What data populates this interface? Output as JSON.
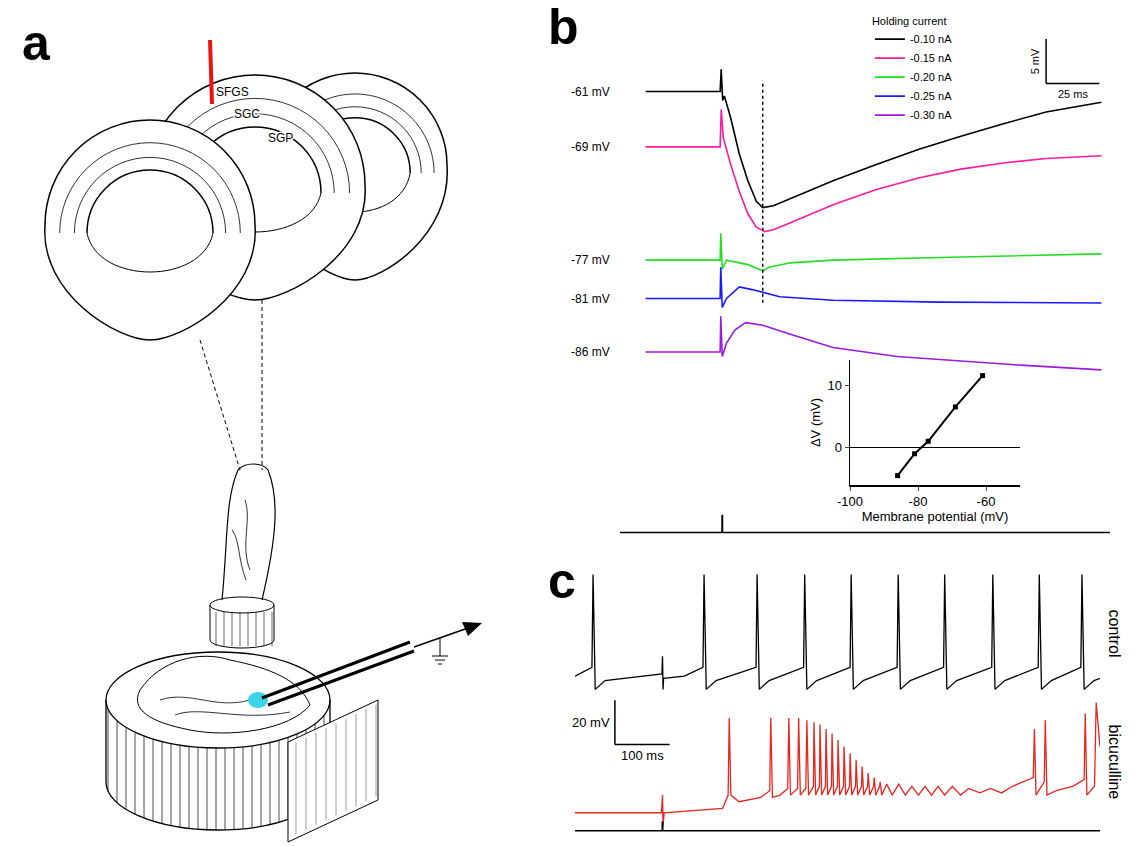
{
  "panel_labels": [
    "a",
    "b",
    "c"
  ],
  "diagram": {
    "layer_labels": [
      "SFGS",
      "SGC",
      "SGP"
    ]
  },
  "chart_data": [
    {
      "type": "line",
      "legend_title": "Holding current",
      "legend": "top",
      "tick_labels": false,
      "xlim": [
        0,
        230
      ],
      "stimulus_ms": 48,
      "marker_ms": 67,
      "scale_bar": {
        "x": 25,
        "x_label": "25 ms",
        "y": 5,
        "y_label": "5 mV"
      },
      "series": [
        {
          "name": "-0.10 nA",
          "color": "#000000",
          "label": "-61 mV",
          "ylim": [
            -93.5,
            -54.1
          ],
          "x": [
            12,
            47,
            47.5,
            48.2,
            49,
            52,
            56,
            60,
            64,
            67,
            72,
            80,
            90,
            100,
            120,
            140,
            160,
            180,
            200,
            226
          ],
          "values": [
            -61,
            -61,
            -58.5,
            -62,
            -61.5,
            -64,
            -68,
            -71,
            -73.3,
            -74,
            -73.8,
            -73,
            -72,
            -71,
            -69.2,
            -67.5,
            -66,
            -64.6,
            -63.3,
            -62.2
          ]
        },
        {
          "name": "-0.15 nA",
          "color": "#ff1aa0",
          "label": "-69 mV",
          "ylim": [
            -95.3,
            -55.9
          ],
          "x": [
            12,
            47,
            47.5,
            48.5,
            52,
            56,
            60,
            64,
            68,
            72,
            80,
            90,
            100,
            120,
            140,
            160,
            180,
            200,
            226
          ],
          "values": [
            -69,
            -69,
            -64.8,
            -68,
            -71,
            -74,
            -76.5,
            -78,
            -78.5,
            -78.3,
            -77.5,
            -76.5,
            -75.5,
            -73.8,
            -72.5,
            -71.5,
            -70.8,
            -70.3,
            -70
          ]
        },
        {
          "name": "-0.20 nA",
          "color": "#22dd22",
          "label": "-77 mV",
          "ylim": [
            -90.6,
            -51.2
          ],
          "x": [
            12,
            47,
            47.3,
            48,
            50,
            60,
            67,
            70,
            80,
            100,
            150,
            226
          ],
          "values": [
            -77,
            -77,
            -74,
            -78,
            -77,
            -77.5,
            -78.2,
            -77.8,
            -77.3,
            -77,
            -76.7,
            -76.3
          ]
        },
        {
          "name": "-0.25 nA",
          "color": "#1a1aff",
          "label": "-81 mV",
          "ylim": [
            -90.3,
            -50.9
          ],
          "x": [
            12,
            47,
            47.3,
            48,
            50,
            56,
            62,
            67,
            75,
            100,
            150,
            226
          ],
          "values": [
            -81,
            -81,
            -77.5,
            -82,
            -81,
            -79.7,
            -80,
            -80.3,
            -80.8,
            -81.2,
            -81.4,
            -81.5
          ]
        },
        {
          "name": "-0.30 nA",
          "color": "#9a1ae0",
          "label": "-86 mV",
          "ylim": [
            -89.3,
            -49.9
          ],
          "x": [
            12,
            47,
            47.3,
            48,
            50,
            54,
            59,
            67,
            80,
            100,
            130,
            160,
            190,
            226
          ],
          "values": [
            -86,
            -86,
            -82,
            -86.5,
            -85,
            -83.5,
            -82.7,
            -83,
            -84,
            -85.5,
            -86.5,
            -87,
            -87.5,
            -88
          ]
        }
      ]
    },
    {
      "type": "line",
      "x_label": "Membrane potential (mV)",
      "y_label": "ΔV (mV)",
      "xlim": [
        -100,
        -50
      ],
      "xticks": [
        -100,
        -80,
        -60
      ],
      "ylim": [
        -6,
        14
      ],
      "yticks": [
        0,
        10
      ],
      "grid": false,
      "color": "#000000",
      "marker": "square",
      "line_style": "solid",
      "x": [
        -86,
        -81,
        -77,
        -69,
        -61
      ],
      "values": [
        -4.5,
        -1,
        1,
        6.5,
        11.5
      ]
    },
    {
      "type": "line",
      "tick_labels": false,
      "xlim": [
        0,
        960
      ],
      "stimulus_ms": 160,
      "scale_bar": {
        "x": 100,
        "x_label": "100 ms",
        "y": 20,
        "y_label": "20 mV"
      },
      "series": [
        {
          "name": "control",
          "color": "#000000",
          "ylim": [
            -63,
            -6
          ],
          "x": [
            0,
            31,
            33,
            37,
            55,
            150,
            159,
            160,
            161,
            162,
            200,
            234,
            236,
            240,
            258,
            331,
            333,
            337,
            355,
            418,
            420,
            424,
            442,
            503,
            505,
            509,
            527,
            589,
            591,
            595,
            613,
            674,
            676,
            680,
            698,
            762,
            764,
            768,
            786,
            847,
            849,
            853,
            871,
            925,
            927,
            931,
            949,
            960
          ],
          "values": [
            -54,
            -50,
            -8,
            -60,
            -56,
            -53,
            -53,
            -45,
            -60,
            -55,
            -54,
            -50,
            -8,
            -60,
            -56,
            -50,
            -8,
            -60,
            -56,
            -50,
            -8,
            -60,
            -56,
            -50,
            -8,
            -60,
            -56,
            -50,
            -8,
            -60,
            -56,
            -50,
            -8,
            -60,
            -56,
            -50,
            -8,
            -60,
            -56,
            -50,
            -8,
            -60,
            -56,
            -50,
            -8,
            -60,
            -56,
            -55
          ]
        },
        {
          "name": "bicuculline",
          "color": "#e8251f",
          "ylim": [
            -66,
            -8
          ],
          "x": [
            0,
            158,
            160,
            161,
            163,
            270,
            280,
            282,
            285,
            300,
            340,
            356,
            358,
            361,
            375,
            389,
            391,
            394,
            407,
            409,
            412,
            422,
            424,
            427,
            436,
            437,
            440,
            447,
            448,
            451,
            458,
            459,
            462,
            469,
            470,
            473,
            480,
            481,
            484,
            491,
            492,
            495,
            502,
            503,
            506,
            513,
            514,
            517,
            524,
            525,
            528,
            535,
            536,
            539,
            546,
            547,
            550,
            557,
            558,
            561,
            570,
            580,
            592,
            604,
            616,
            628,
            640,
            652,
            664,
            676,
            690,
            705,
            720,
            740,
            760,
            780,
            800,
            820,
            838,
            840,
            843,
            858,
            860,
            863,
            880,
            910,
            931,
            933,
            936,
            950,
            953,
            960
          ],
          "values": [
            -60,
            -60,
            -52,
            -66,
            -60,
            -58,
            -52,
            -17,
            -52,
            -55,
            -53,
            -50,
            -17,
            -53,
            -52,
            -49,
            -17,
            -52,
            -49,
            -17,
            -52,
            -49,
            -18,
            -52,
            -48,
            -19,
            -52,
            -48,
            -20,
            -52,
            -48,
            -22,
            -52,
            -48,
            -24,
            -52,
            -48,
            -27,
            -52,
            -48,
            -30,
            -52,
            -48,
            -33,
            -52,
            -48,
            -36,
            -52,
            -48,
            -39,
            -52,
            -48,
            -42,
            -52,
            -48,
            -44,
            -52,
            -48,
            -46,
            -52,
            -47,
            -52,
            -47,
            -52,
            -48,
            -52,
            -48,
            -52,
            -48,
            -52,
            -48,
            -52,
            -49,
            -51,
            -49,
            -51,
            -48,
            -46,
            -44,
            -22,
            -52,
            -46,
            -18,
            -52,
            -50,
            -48,
            -45,
            -15,
            -52,
            -48,
            -10,
            -30
          ]
        }
      ]
    }
  ]
}
